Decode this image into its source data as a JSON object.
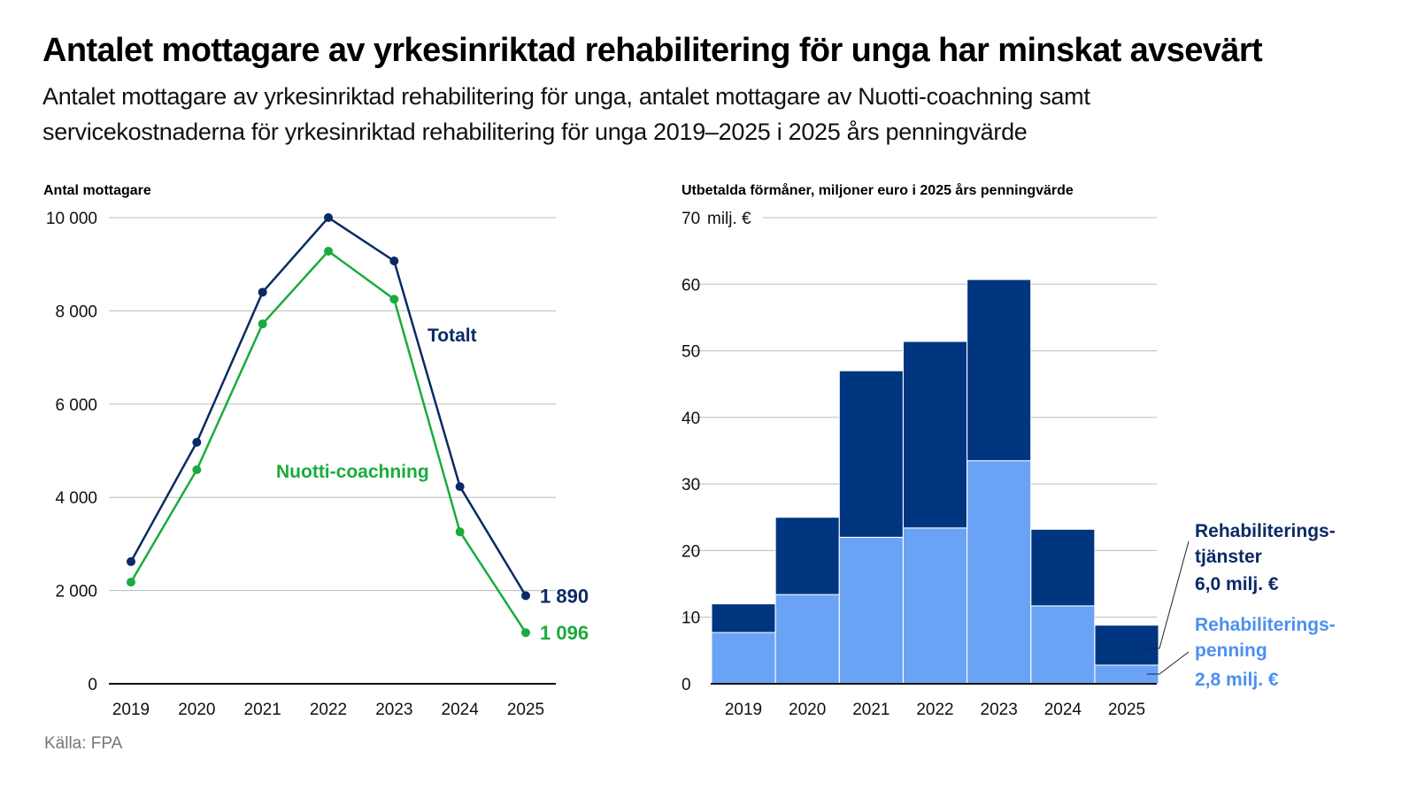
{
  "title": "Antalet mottagare av yrkesinriktad rehabilitering för unga har minskat avsevärt",
  "subtitle_line1": "Antalet mottagare av yrkesinriktad rehabilitering för unga, antalet mottagare av Nuotti-coachning samt",
  "subtitle_line2": "servicekostnaderna för yrkesinriktad rehabilitering för unga 2019–2025 i 2025 års penningvärde",
  "source": "Källa: FPA",
  "chart_data": [
    {
      "type": "line",
      "ylabel": "Antal mottagare",
      "ylim": [
        0,
        10000
      ],
      "yticks": [
        "0",
        "2 000",
        "4 000",
        "6 000",
        "8 000",
        "10 000"
      ],
      "grid": true,
      "categories": [
        "2019",
        "2020",
        "2021",
        "2022",
        "2023",
        "2024",
        "2025"
      ],
      "series": [
        {
          "name": "Totalt",
          "color": "#0a2a66",
          "values": [
            2620,
            5180,
            8400,
            10000,
            9070,
            4230,
            1890
          ],
          "end_label": "1 890"
        },
        {
          "name": "Nuotti-coachning",
          "color": "#1aab3c",
          "values": [
            2180,
            4590,
            7720,
            9280,
            8250,
            3260,
            1096
          ],
          "end_label": "1 096"
        }
      ]
    },
    {
      "type": "bar",
      "stacked": true,
      "ylabel": "Utbetalda förmåner, miljoner euro i 2025 års penningvärde",
      "ylim": [
        0,
        70
      ],
      "yticks": [
        "0",
        "10",
        "20",
        "30",
        "40",
        "50",
        "60",
        "70"
      ],
      "top_unit": "milj. €",
      "grid": true,
      "categories": [
        "2019",
        "2020",
        "2021",
        "2022",
        "2023",
        "2024",
        "2025"
      ],
      "series": [
        {
          "name": "Rehabiliterings-penning",
          "name_lines": [
            "Rehabiliterings-",
            "penning"
          ],
          "value_label": "2,8 milj. €",
          "color": "#6aa3f5",
          "values": [
            7.7,
            13.4,
            22.0,
            23.4,
            33.5,
            11.7,
            2.8
          ]
        },
        {
          "name": "Rehabiliterings-tjänster",
          "name_lines": [
            "Rehabiliterings-",
            "tjänster"
          ],
          "value_label": "6,0 milj. €",
          "color": "#003580",
          "values": [
            4.3,
            11.6,
            25.0,
            28.0,
            27.2,
            11.5,
            6.0
          ]
        }
      ]
    }
  ]
}
